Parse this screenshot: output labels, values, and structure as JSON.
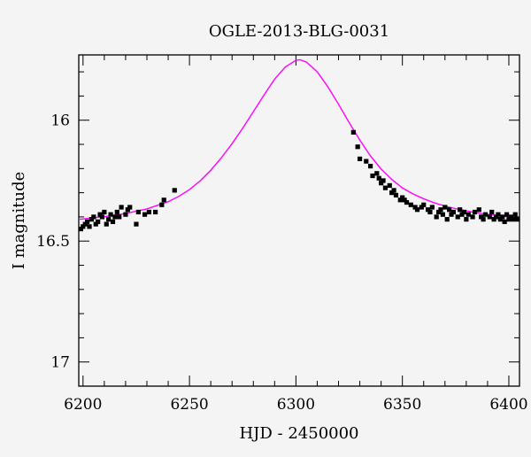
{
  "chart_data": {
    "type": "scatter",
    "title": "OGLE-2013-BLG-0031",
    "xlabel": "HJD - 2450000",
    "ylabel": "I magnitude",
    "xlim": [
      6198,
      6405
    ],
    "ylim": [
      17.1,
      15.73
    ],
    "y_inverted": true,
    "grid": false,
    "x_ticks": [
      6200,
      6250,
      6300,
      6350,
      6400
    ],
    "x_tick_labels": [
      "6200",
      "6250",
      "6300",
      "6350",
      "6400"
    ],
    "x_minor_step": 10,
    "y_ticks": [
      16,
      16.5,
      17
    ],
    "y_tick_labels": [
      "16",
      "16.5",
      "17"
    ],
    "y_minor_step": 0.1,
    "colors": {
      "points": "#000000",
      "model": "#ff00ff",
      "background": "#f4f4f4"
    },
    "series": [
      {
        "kind": "points",
        "points": [
          [
            6199,
            16.45
          ],
          [
            6200,
            16.44
          ],
          [
            6201,
            16.43
          ],
          [
            6202,
            16.42
          ],
          [
            6203,
            16.44
          ],
          [
            6204,
            16.41
          ],
          [
            6205,
            16.4
          ],
          [
            6206,
            16.43
          ],
          [
            6207,
            16.42
          ],
          [
            6208,
            16.39
          ],
          [
            6209,
            16.4
          ],
          [
            6210,
            16.38
          ],
          [
            6211,
            16.43
          ],
          [
            6212,
            16.41
          ],
          [
            6213,
            16.39
          ],
          [
            6214,
            16.42
          ],
          [
            6215,
            16.4
          ],
          [
            6216,
            16.38
          ],
          [
            6217,
            16.4
          ],
          [
            6218,
            16.36
          ],
          [
            6220,
            16.39
          ],
          [
            6221,
            16.37
          ],
          [
            6222,
            16.36
          ],
          [
            6225,
            16.43
          ],
          [
            6226,
            16.38
          ],
          [
            6229,
            16.39
          ],
          [
            6231,
            16.38
          ],
          [
            6234,
            16.38
          ],
          [
            6237,
            16.35
          ],
          [
            6238,
            16.33
          ],
          [
            6243,
            16.29
          ],
          [
            6327,
            16.05
          ],
          [
            6329,
            16.11
          ],
          [
            6330,
            16.16
          ],
          [
            6333,
            16.17
          ],
          [
            6335,
            16.19
          ],
          [
            6336,
            16.23
          ],
          [
            6338,
            16.22
          ],
          [
            6339,
            16.24
          ],
          [
            6340,
            16.26
          ],
          [
            6341,
            16.25
          ],
          [
            6342,
            16.28
          ],
          [
            6344,
            16.27
          ],
          [
            6345,
            16.3
          ],
          [
            6346,
            16.29
          ],
          [
            6347,
            16.31
          ],
          [
            6349,
            16.33
          ],
          [
            6350,
            16.32
          ],
          [
            6351,
            16.33
          ],
          [
            6352,
            16.34
          ],
          [
            6354,
            16.35
          ],
          [
            6356,
            16.36
          ],
          [
            6357,
            16.37
          ],
          [
            6359,
            16.36
          ],
          [
            6360,
            16.35
          ],
          [
            6362,
            16.37
          ],
          [
            6363,
            16.38
          ],
          [
            6364,
            16.36
          ],
          [
            6366,
            16.4
          ],
          [
            6367,
            16.38
          ],
          [
            6368,
            16.37
          ],
          [
            6369,
            16.39
          ],
          [
            6370,
            16.36
          ],
          [
            6371,
            16.41
          ],
          [
            6372,
            16.37
          ],
          [
            6373,
            16.39
          ],
          [
            6374,
            16.38
          ],
          [
            6376,
            16.4
          ],
          [
            6377,
            16.37
          ],
          [
            6378,
            16.39
          ],
          [
            6379,
            16.38
          ],
          [
            6380,
            16.41
          ],
          [
            6381,
            16.39
          ],
          [
            6383,
            16.4
          ],
          [
            6384,
            16.38
          ],
          [
            6386,
            16.37
          ],
          [
            6387,
            16.4
          ],
          [
            6388,
            16.41
          ],
          [
            6389,
            16.39
          ],
          [
            6391,
            16.4
          ],
          [
            6392,
            16.38
          ],
          [
            6393,
            16.41
          ],
          [
            6394,
            16.4
          ],
          [
            6395,
            16.39
          ],
          [
            6396,
            16.41
          ],
          [
            6397,
            16.4
          ],
          [
            6398,
            16.42
          ],
          [
            6399,
            16.39
          ],
          [
            6400,
            16.41
          ],
          [
            6401,
            16.4
          ],
          [
            6402,
            16.41
          ],
          [
            6403,
            16.39
          ],
          [
            6404,
            16.41
          ]
        ]
      },
      {
        "kind": "model",
        "points": [
          [
            6198,
            16.41
          ],
          [
            6210,
            16.399
          ],
          [
            6220,
            16.386
          ],
          [
            6230,
            16.367
          ],
          [
            6240,
            16.337
          ],
          [
            6245,
            16.315
          ],
          [
            6250,
            16.287
          ],
          [
            6255,
            16.251
          ],
          [
            6260,
            16.207
          ],
          [
            6265,
            16.155
          ],
          [
            6270,
            16.097
          ],
          [
            6275,
            16.033
          ],
          [
            6280,
            15.965
          ],
          [
            6285,
            15.896
          ],
          [
            6290,
            15.83
          ],
          [
            6295,
            15.78
          ],
          [
            6300,
            15.752
          ],
          [
            6302,
            15.75
          ],
          [
            6305,
            15.76
          ],
          [
            6310,
            15.8
          ],
          [
            6315,
            15.862
          ],
          [
            6320,
            15.934
          ],
          [
            6325,
            16.01
          ],
          [
            6330,
            16.082
          ],
          [
            6335,
            16.148
          ],
          [
            6340,
            16.202
          ],
          [
            6345,
            16.245
          ],
          [
            6350,
            16.28
          ],
          [
            6355,
            16.305
          ],
          [
            6360,
            16.325
          ],
          [
            6365,
            16.342
          ],
          [
            6370,
            16.355
          ],
          [
            6375,
            16.366
          ],
          [
            6380,
            16.375
          ],
          [
            6385,
            16.383
          ],
          [
            6390,
            16.389
          ],
          [
            6395,
            16.395
          ],
          [
            6400,
            16.4
          ],
          [
            6405,
            16.404
          ]
        ]
      }
    ]
  }
}
